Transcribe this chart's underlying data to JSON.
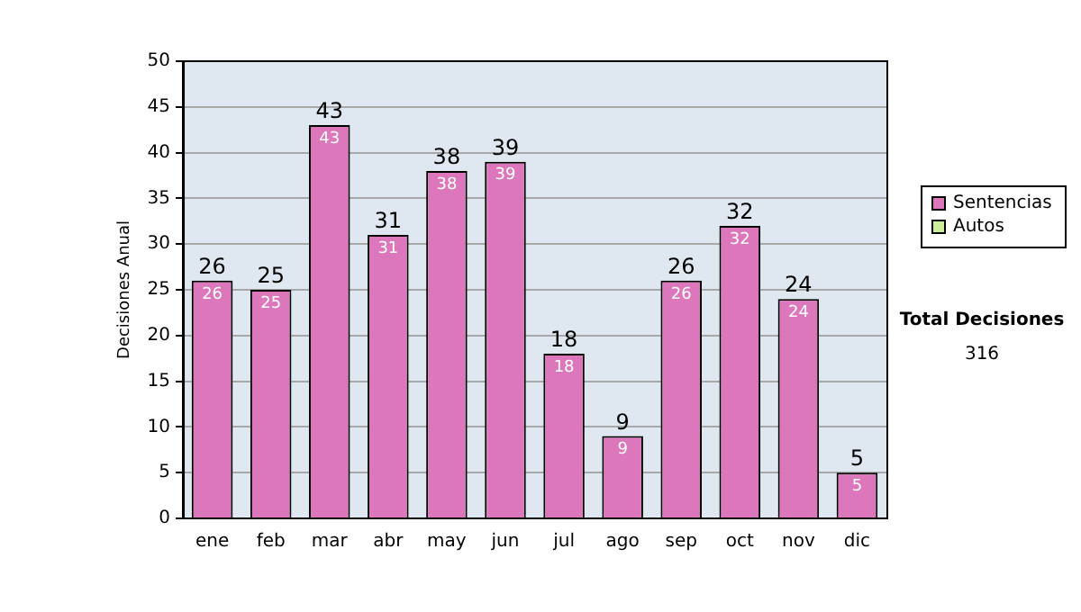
{
  "chart_data": {
    "type": "bar",
    "ylabel": "Decisiones Anual",
    "categories": [
      "ene",
      "feb",
      "mar",
      "abr",
      "may",
      "jun",
      "jul",
      "ago",
      "sep",
      "oct",
      "nov",
      "dic"
    ],
    "series": [
      {
        "name": "Sentencias",
        "color": "#dd77bb",
        "values": [
          26,
          25,
          43,
          31,
          38,
          39,
          18,
          9,
          26,
          32,
          24,
          5
        ],
        "value_labels": [
          "26",
          "25",
          "43",
          "31",
          "38",
          "39",
          "18",
          "9",
          "26",
          "32",
          "24",
          "5"
        ]
      },
      {
        "name": "Autos",
        "color": "#ccee99",
        "values": [
          0,
          0,
          0,
          0,
          0,
          0,
          0,
          0,
          0,
          0,
          0,
          0
        ],
        "value_labels": [
          null,
          null,
          null,
          null,
          null,
          null,
          null,
          null,
          null,
          null,
          null,
          null
        ]
      }
    ],
    "stacked": true,
    "totals": [
      "26",
      "25",
      "43",
      "31",
      "38",
      "39",
      "18",
      "9",
      "26",
      "32",
      "24",
      "5"
    ],
    "ylim": [
      0,
      50
    ],
    "yticks": [
      0,
      5,
      10,
      15,
      20,
      25,
      30,
      35,
      40,
      45,
      50
    ],
    "grid": "y",
    "legend": "right",
    "annotations": [
      "Total Decisiones",
      "316"
    ]
  }
}
